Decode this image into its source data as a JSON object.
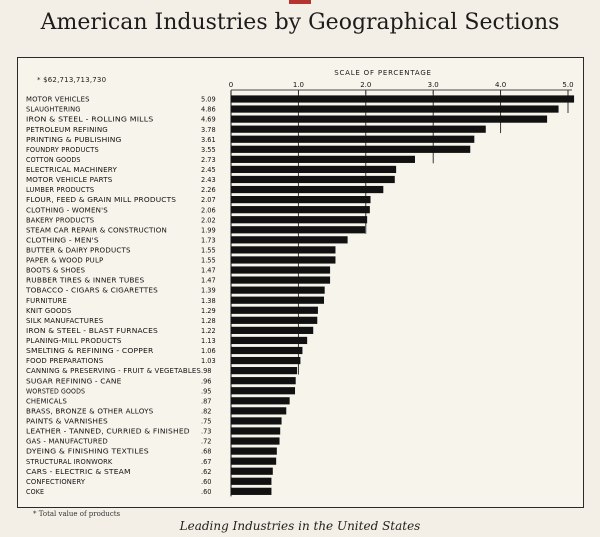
{
  "title": "American Industries by Geographical Sections",
  "caption": "Leading Industries in the United States",
  "footnote": "* Total value of products",
  "colors": {
    "bar": "#111111",
    "background": "#f3efe6",
    "accent": "#b5342f"
  },
  "chart_data": {
    "type": "bar",
    "orientation": "horizontal",
    "scale_label": "SCALE OF PERCENTAGE",
    "total_label": "* $62,713,713,730",
    "xlim": [
      0,
      5.0
    ],
    "x_ticks": [
      "0",
      "1.0",
      "2.0",
      "3.0",
      "4.0",
      "5.0"
    ],
    "grid": "vertical lines at 1.0, 2.0, 3.0, 4.0, 5.0",
    "categories": [
      "MOTOR VEHICLES",
      "SLAUGHTERING",
      "IRON & STEEL - ROLLING MILLS",
      "PETROLEUM REFINING",
      "PRINTING & PUBLISHING",
      "FOUNDRY PRODUCTS",
      "COTTON GOODS",
      "ELECTRICAL MACHINERY",
      "MOTOR VEHICLE PARTS",
      "LUMBER PRODUCTS",
      "FLOUR, FEED & GRAIN MILL PRODUCTS",
      "CLOTHING - WOMEN'S",
      "BAKERY PRODUCTS",
      "STEAM CAR REPAIR & CONSTRUCTION",
      "CLOTHING - MEN'S",
      "BUTTER & DAIRY PRODUCTS",
      "PAPER & WOOD PULP",
      "BOOTS & SHOES",
      "RUBBER TIRES & INNER TUBES",
      "TOBACCO - CIGARS & CIGARETTES",
      "FURNITURE",
      "KNIT GOODS",
      "SILK MANUFACTURES",
      "IRON & STEEL - BLAST FURNACES",
      "PLANING-MILL PRODUCTS",
      "SMELTING & REFINING - COPPER",
      "FOOD PREPARATIONS",
      "CANNING & PRESERVING - FRUIT & VEGETABLES",
      "SUGAR REFINING - CANE",
      "WORSTED GOODS",
      "CHEMICALS",
      "BRASS, BRONZE & OTHER ALLOYS",
      "PAINTS & VARNISHES",
      "LEATHER - TANNED, CURRIED & FINISHED",
      "GAS - MANUFACTURED",
      "DYEING & FINISHING TEXTILES",
      "STRUCTURAL IRONWORK",
      "CARS - ELECTRIC & STEAM",
      "CONFECTIONERY",
      "COKE"
    ],
    "value_labels": [
      "5.09",
      "4.86",
      "4.69",
      "3.78",
      "3.61",
      "3.55",
      "2.73",
      "2.45",
      "2.43",
      "2.26",
      "2.07",
      "2.06",
      "2.02",
      "1.99",
      "1.73",
      "1.55",
      "1.55",
      "1.47",
      "1.47",
      "1.39",
      "1.38",
      "1.29",
      "1.28",
      "1.22",
      "1.13",
      "1.06",
      "1.03",
      ".98",
      ".96",
      ".95",
      ".87",
      ".82",
      ".75",
      ".73",
      ".72",
      ".68",
      ".67",
      ".62",
      ".60",
      ".60"
    ],
    "values": [
      5.09,
      4.86,
      4.69,
      3.78,
      3.61,
      3.55,
      2.73,
      2.45,
      2.43,
      2.26,
      2.07,
      2.06,
      2.02,
      1.99,
      1.73,
      1.55,
      1.55,
      1.47,
      1.47,
      1.39,
      1.38,
      1.29,
      1.28,
      1.22,
      1.13,
      1.06,
      1.03,
      0.98,
      0.96,
      0.95,
      0.87,
      0.82,
      0.75,
      0.73,
      0.72,
      0.68,
      0.67,
      0.62,
      0.6,
      0.6
    ]
  }
}
